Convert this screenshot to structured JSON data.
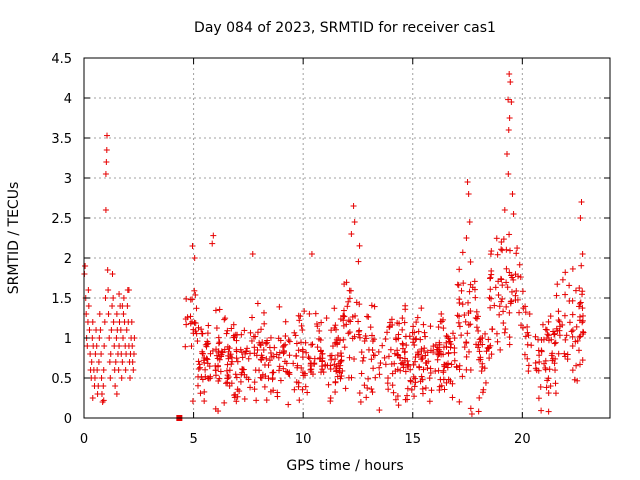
{
  "chart_data": {
    "type": "scatter",
    "title": "Day 084 of 2023, SRMTID for receiver cas1",
    "xlabel": "GPS time / hours",
    "ylabel": "SRMTID / TECUs",
    "xlim": [
      0,
      24
    ],
    "ylim": [
      0,
      4.5
    ],
    "x_ticks": [
      "0",
      "5",
      "10",
      "15",
      "20"
    ],
    "x_tick_values": [
      0,
      5,
      10,
      15,
      20
    ],
    "y_ticks": [
      "0",
      "0.5",
      "1",
      "1.5",
      "2",
      "2.5",
      "3",
      "3.5",
      "4",
      "4.5"
    ],
    "y_tick_values": [
      0,
      0.5,
      1,
      1.5,
      2,
      2.5,
      3,
      3.5,
      4,
      4.5
    ],
    "grid": true,
    "marker": "+",
    "color": "#e60000",
    "gap_marker": {
      "x": 4.35,
      "y": 0.0
    },
    "series": [
      {
        "name": "SRMTID",
        "points": [
          [
            0.02,
            1.8
          ],
          [
            0.05,
            1.9
          ],
          [
            0.08,
            1.5
          ],
          [
            0.1,
            1.3
          ],
          [
            0.12,
            1.0
          ],
          [
            0.15,
            0.9
          ],
          [
            0.18,
            1.2
          ],
          [
            0.2,
            1.6
          ],
          [
            0.22,
            1.4
          ],
          [
            0.25,
            1.1
          ],
          [
            0.28,
            0.8
          ],
          [
            0.3,
            0.6
          ],
          [
            0.33,
            0.5
          ],
          [
            0.35,
            0.7
          ],
          [
            0.38,
            1.0
          ],
          [
            0.4,
            1.2
          ],
          [
            0.42,
            0.9
          ],
          [
            0.45,
            0.6
          ],
          [
            0.48,
            0.4
          ],
          [
            0.5,
            0.5
          ],
          [
            0.52,
            0.8
          ],
          [
            0.55,
            1.1
          ],
          [
            0.58,
            0.9
          ],
          [
            0.6,
            0.6
          ],
          [
            0.62,
            0.3
          ],
          [
            0.65,
            0.4
          ],
          [
            0.68,
            0.7
          ],
          [
            0.7,
            1.0
          ],
          [
            0.72,
            1.3
          ],
          [
            0.75,
            1.1
          ],
          [
            0.78,
            0.8
          ],
          [
            0.8,
            0.5
          ],
          [
            0.82,
            0.3
          ],
          [
            0.85,
            0.2
          ],
          [
            0.88,
            0.4
          ],
          [
            0.9,
            0.6
          ],
          [
            0.92,
            0.9
          ],
          [
            0.95,
            1.2
          ],
          [
            0.98,
            1.5
          ],
          [
            1.0,
            2.6
          ],
          [
            1.0,
            3.05
          ],
          [
            1.02,
            3.2
          ],
          [
            1.04,
            3.35
          ],
          [
            1.05,
            3.53
          ],
          [
            1.08,
            1.85
          ],
          [
            1.1,
            1.6
          ],
          [
            1.12,
            1.3
          ],
          [
            1.15,
            1.0
          ],
          [
            1.18,
            0.7
          ],
          [
            1.2,
            0.5
          ],
          [
            1.22,
            0.8
          ],
          [
            1.25,
            1.1
          ],
          [
            1.28,
            1.4
          ],
          [
            1.3,
            1.8
          ],
          [
            1.33,
            1.5
          ],
          [
            1.35,
            1.2
          ],
          [
            1.38,
            0.9
          ],
          [
            1.4,
            0.6
          ],
          [
            1.42,
            0.4
          ],
          [
            1.45,
            0.7
          ],
          [
            1.48,
            1.0
          ],
          [
            1.5,
            1.3
          ],
          [
            1.52,
            1.1
          ],
          [
            1.55,
            0.8
          ],
          [
            1.58,
            0.6
          ],
          [
            1.6,
            0.9
          ],
          [
            1.62,
            1.2
          ],
          [
            1.65,
            1.4
          ],
          [
            1.68,
            1.1
          ],
          [
            1.7,
            0.8
          ],
          [
            1.72,
            0.5
          ],
          [
            1.75,
            0.7
          ],
          [
            1.78,
            1.0
          ],
          [
            1.8,
            1.3
          ],
          [
            1.82,
            1.5
          ],
          [
            1.85,
            1.2
          ],
          [
            1.88,
            0.9
          ],
          [
            1.9,
            0.6
          ],
          [
            1.92,
            0.8
          ],
          [
            1.95,
            1.1
          ],
          [
            1.98,
            1.4
          ],
          [
            2.0,
            1.6
          ],
          [
            2.02,
            1.2
          ],
          [
            2.05,
            0.9
          ],
          [
            2.08,
            0.7
          ],
          [
            2.1,
            0.5
          ],
          [
            2.12,
            0.8
          ],
          [
            2.15,
            1.0
          ],
          [
            2.18,
            1.2
          ],
          [
            2.2,
            0.9
          ],
          [
            2.22,
            0.7
          ],
          [
            2.25,
            0.6
          ],
          [
            2.28,
            0.8
          ],
          [
            2.3,
            1.0
          ],
          [
            0.4,
            0.25
          ],
          [
            0.9,
            0.22
          ],
          [
            1.5,
            0.3
          ],
          [
            1.75,
            1.4
          ],
          [
            1.6,
            1.55
          ],
          [
            2.05,
            1.6
          ]
        ]
      }
    ]
  }
}
